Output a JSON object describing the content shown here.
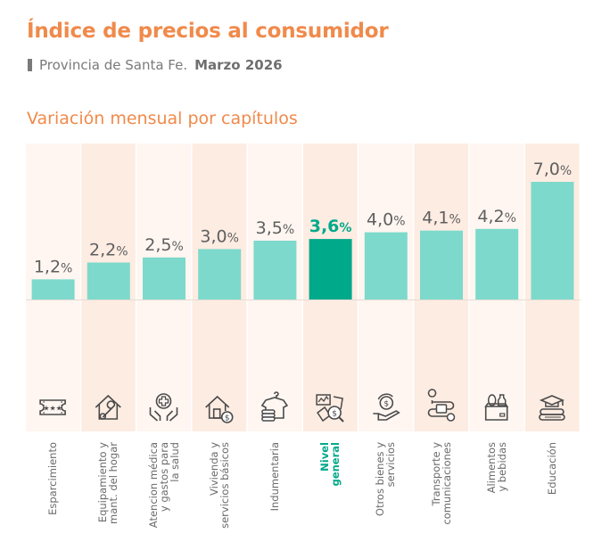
{
  "header": {
    "title": "Índice de precios al consumidor",
    "subtitle": "Provincia de Santa Fe.",
    "date": "Marzo 2026",
    "section_title": "Variación mensual por capítulos"
  },
  "colors": {
    "accent": "#f08a4b",
    "bar": "#7dd9cb",
    "bar_highlight": "#00a98a",
    "col_light": "#fff6f1",
    "col_dark": "#fdece2",
    "value_text": "#5f5f5f"
  },
  "chart_data": {
    "type": "bar",
    "title": "Variación mensual por capítulos",
    "xlabel": "",
    "ylabel": "",
    "ylim": [
      0,
      7.0
    ],
    "unit": "%",
    "highlight": "Nivel general",
    "categories": [
      "Esparcimiento",
      "Equipamiento y mant. del hogar",
      "Atencion médica y gastos para la salud",
      "Vivienda y servicios básicos",
      "Indumentaria",
      "Nivel general",
      "Otros bienes y servicios",
      "Transporte y comunicaciones",
      "Alimentos y bebidas",
      "Educación"
    ],
    "label_lines": [
      [
        "Esparcimiento"
      ],
      [
        "Equipamiento y",
        "mant. del hogar"
      ],
      [
        "Atencion médica",
        "y gastos para",
        "la salud"
      ],
      [
        "Vivienda y",
        "servicios básicos"
      ],
      [
        "Indumentaria"
      ],
      [
        "Nivel",
        "general"
      ],
      [
        "Otros bienes y",
        "servicios"
      ],
      [
        "Transporte y",
        "comunicaciones"
      ],
      [
        "Alimentos",
        "y bebidas"
      ],
      [
        "Educación"
      ]
    ],
    "values": [
      1.2,
      2.2,
      2.5,
      3.0,
      3.5,
      3.6,
      4.0,
      4.1,
      4.2,
      7.0
    ],
    "value_labels": [
      "1,2",
      "2,2",
      "2,5",
      "3,0",
      "3,5",
      "3,6",
      "4,0",
      "4,1",
      "4,2",
      "7,0"
    ],
    "icons": [
      "ticket-icon",
      "house-wrench-icon",
      "health-hands-icon",
      "house-dollar-icon",
      "clothes-icon",
      "analysis-icon",
      "money-hand-icon",
      "transport-route-icon",
      "grocery-box-icon",
      "education-icon"
    ]
  }
}
